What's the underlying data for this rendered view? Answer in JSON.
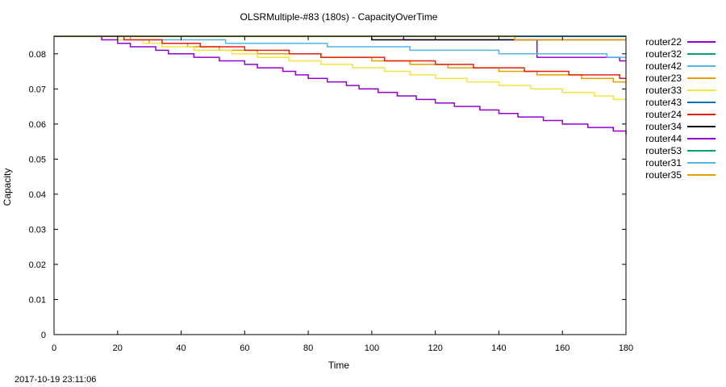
{
  "chart_data": {
    "type": "line",
    "title": "OLSRMultiple-#83 (180s) - CapacityOverTime",
    "xlabel": "Time",
    "ylabel": "Capacity",
    "xlim": [
      0,
      180
    ],
    "ylim": [
      0,
      0.085
    ],
    "x_ticks": [
      0,
      20,
      40,
      60,
      80,
      100,
      120,
      140,
      160,
      180
    ],
    "y_ticks": [
      0,
      0.01,
      0.02,
      0.03,
      0.04,
      0.05,
      0.06,
      0.07,
      0.08
    ],
    "x_tick_labels": [
      "0",
      "20",
      "40",
      "60",
      "80",
      "100",
      "120",
      "140",
      "160",
      "180"
    ],
    "y_tick_labels": [
      "0",
      "0.01",
      "0.02",
      "0.03",
      "0.04",
      "0.05",
      "0.06",
      "0.07",
      "0.08"
    ],
    "grid": false,
    "legend_position": "outside-right",
    "timestamp": "2017-10-19 23:11:06",
    "series": [
      {
        "name": "router22",
        "color": "#9400d3",
        "step": true,
        "points": [
          [
            0,
            0.085
          ],
          [
            100,
            0.085
          ],
          [
            110,
            0.084
          ],
          [
            150,
            0.084
          ],
          [
            152,
            0.079
          ],
          [
            176,
            0.079
          ],
          [
            178,
            0.078
          ],
          [
            180,
            0.078
          ]
        ]
      },
      {
        "name": "router32",
        "color": "#009e73",
        "step": true,
        "points": [
          [
            0,
            0.085
          ],
          [
            180,
            0.085
          ]
        ]
      },
      {
        "name": "router42",
        "color": "#56b4e9",
        "step": true,
        "points": [
          [
            0,
            0.085
          ],
          [
            22,
            0.085
          ],
          [
            24,
            0.084
          ],
          [
            52,
            0.084
          ],
          [
            54,
            0.083
          ],
          [
            84,
            0.083
          ],
          [
            86,
            0.082
          ],
          [
            110,
            0.082
          ],
          [
            112,
            0.081
          ],
          [
            138,
            0.081
          ],
          [
            140,
            0.08
          ],
          [
            172,
            0.08
          ],
          [
            174,
            0.079
          ],
          [
            180,
            0.079
          ]
        ]
      },
      {
        "name": "router23",
        "color": "#e69f00",
        "step": true,
        "points": [
          [
            0,
            0.085
          ],
          [
            15,
            0.085
          ],
          [
            20,
            0.084
          ],
          [
            30,
            0.083
          ],
          [
            42,
            0.082
          ],
          [
            52,
            0.081
          ],
          [
            64,
            0.08
          ],
          [
            76,
            0.08
          ],
          [
            84,
            0.079
          ],
          [
            100,
            0.078
          ],
          [
            112,
            0.077
          ],
          [
            124,
            0.076
          ],
          [
            140,
            0.075
          ],
          [
            152,
            0.074
          ],
          [
            166,
            0.073
          ],
          [
            176,
            0.072
          ],
          [
            180,
            0.072
          ]
        ]
      },
      {
        "name": "router33",
        "color": "#f0e442",
        "step": true,
        "points": [
          [
            0,
            0.085
          ],
          [
            14,
            0.085
          ],
          [
            20,
            0.084
          ],
          [
            28,
            0.083
          ],
          [
            34,
            0.082
          ],
          [
            44,
            0.081
          ],
          [
            56,
            0.08
          ],
          [
            64,
            0.079
          ],
          [
            74,
            0.078
          ],
          [
            84,
            0.077
          ],
          [
            94,
            0.076
          ],
          [
            104,
            0.075
          ],
          [
            112,
            0.074
          ],
          [
            120,
            0.073
          ],
          [
            130,
            0.072
          ],
          [
            140,
            0.071
          ],
          [
            150,
            0.07
          ],
          [
            160,
            0.069
          ],
          [
            170,
            0.068
          ],
          [
            176,
            0.067
          ],
          [
            180,
            0.067
          ]
        ]
      },
      {
        "name": "router43",
        "color": "#0072b2",
        "step": true,
        "points": [
          [
            0,
            0.085
          ],
          [
            180,
            0.085
          ]
        ]
      },
      {
        "name": "router24",
        "color": "#e51e10",
        "step": true,
        "points": [
          [
            0,
            0.085
          ],
          [
            18,
            0.085
          ],
          [
            22,
            0.084
          ],
          [
            34,
            0.083
          ],
          [
            46,
            0.082
          ],
          [
            60,
            0.081
          ],
          [
            74,
            0.08
          ],
          [
            84,
            0.079
          ],
          [
            104,
            0.078
          ],
          [
            120,
            0.077
          ],
          [
            132,
            0.076
          ],
          [
            148,
            0.075
          ],
          [
            162,
            0.074
          ],
          [
            178,
            0.073
          ],
          [
            180,
            0.073
          ]
        ]
      },
      {
        "name": "router34",
        "color": "#000000",
        "step": true,
        "points": [
          [
            0,
            0.085
          ],
          [
            98,
            0.085
          ],
          [
            100,
            0.084
          ],
          [
            142,
            0.084
          ],
          [
            180,
            0.084
          ]
        ]
      },
      {
        "name": "router44",
        "color": "#9400d3",
        "step": true,
        "points": [
          [
            0,
            0.085
          ],
          [
            13,
            0.085
          ],
          [
            15,
            0.084
          ],
          [
            18,
            0.084
          ],
          [
            20,
            0.083
          ],
          [
            24,
            0.082
          ],
          [
            28,
            0.082
          ],
          [
            32,
            0.081
          ],
          [
            36,
            0.08
          ],
          [
            40,
            0.08
          ],
          [
            44,
            0.079
          ],
          [
            52,
            0.078
          ],
          [
            60,
            0.077
          ],
          [
            64,
            0.076
          ],
          [
            72,
            0.075
          ],
          [
            76,
            0.074
          ],
          [
            80,
            0.073
          ],
          [
            86,
            0.072
          ],
          [
            92,
            0.071
          ],
          [
            96,
            0.07
          ],
          [
            102,
            0.069
          ],
          [
            108,
            0.068
          ],
          [
            114,
            0.067
          ],
          [
            120,
            0.066
          ],
          [
            126,
            0.065
          ],
          [
            134,
            0.064
          ],
          [
            140,
            0.063
          ],
          [
            146,
            0.062
          ],
          [
            154,
            0.061
          ],
          [
            160,
            0.06
          ],
          [
            168,
            0.059
          ],
          [
            176,
            0.058
          ],
          [
            180,
            0.057
          ]
        ]
      },
      {
        "name": "router53",
        "color": "#009e73",
        "step": true,
        "points": [
          [
            0,
            0.085
          ],
          [
            180,
            0.085
          ]
        ]
      },
      {
        "name": "router31",
        "color": "#56b4e9",
        "step": true,
        "points": [
          [
            0,
            0.085
          ],
          [
            180,
            0.085
          ]
        ]
      },
      {
        "name": "router35",
        "color": "#e69f00",
        "step": true,
        "points": [
          [
            0,
            0.085
          ],
          [
            144,
            0.085
          ],
          [
            145,
            0.084
          ],
          [
            180,
            0.084
          ]
        ]
      }
    ]
  }
}
